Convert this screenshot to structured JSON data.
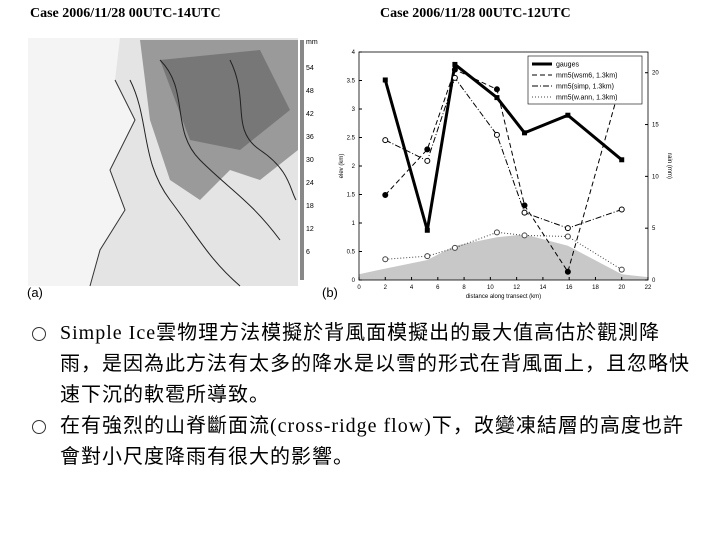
{
  "header": {
    "left": "Case 2006/11/28  00UTC-14UTC",
    "right": "Case 2006/11/28  00UTC-12UTC"
  },
  "figure_a": {
    "label": "(a)",
    "colorbar": {
      "unit": "mm",
      "labels": [
        54,
        48,
        42,
        36,
        30,
        24,
        18,
        12,
        6
      ]
    }
  },
  "figure_b": {
    "label": "(b)"
  },
  "chart_data": {
    "type": "line",
    "xlabel": "distance along transect (km)",
    "ylabel": "elev (km)",
    "y2label": "rain (mm)",
    "xlim": [
      0,
      22
    ],
    "xticks": [
      0,
      2,
      4,
      6,
      8,
      10,
      12,
      14,
      16,
      18,
      20,
      22
    ],
    "ylim": [
      0,
      4
    ],
    "yticks": [
      0,
      0.5,
      1,
      1.5,
      2,
      2.5,
      3,
      3.5,
      4
    ],
    "y2lim": [
      0,
      22
    ],
    "y2ticks": [
      0,
      5,
      10,
      15,
      20
    ],
    "x": [
      2,
      5.2,
      7.3,
      10.5,
      12.6,
      15.9,
      20
    ],
    "series": [
      {
        "name": "gauges",
        "color": "#000000",
        "dash": "solid",
        "width": 3,
        "marker": "square",
        "axis": "y2",
        "values": [
          19.3,
          4.8,
          20.8,
          17.6,
          14.2,
          15.9,
          11.6
        ]
      },
      {
        "name": "mm5(wsm6, 1.3km)",
        "color": "#000000",
        "dash": "dashed",
        "width": 1,
        "marker": "dot",
        "axis": "y2",
        "values": [
          8.2,
          12.6,
          20.3,
          18.4,
          7.2,
          0.8,
          19.3
        ]
      },
      {
        "name": "mm5(simp, 1.3km)",
        "color": "#000000",
        "dash": "dashdot",
        "width": 1,
        "marker": "circle",
        "axis": "y2",
        "values": [
          13.5,
          11.5,
          19.5,
          14,
          6.5,
          5,
          6.8
        ]
      },
      {
        "name": "mm5(w.ann, 1.3km)",
        "color": "#444444",
        "dash": "dotted",
        "width": 1,
        "marker": "circle",
        "axis": "y2",
        "values": [
          2,
          2.3,
          3.1,
          4.6,
          4.3,
          4.2,
          1
        ]
      }
    ],
    "terrain": {
      "color": "#c8c8c8",
      "axis": "y",
      "x": [
        0,
        2,
        5.2,
        7.3,
        10.5,
        12.6,
        15.9,
        20,
        22
      ],
      "values": [
        0.1,
        0.2,
        0.35,
        0.6,
        0.75,
        0.8,
        0.6,
        0.1,
        0.05
      ]
    },
    "legend": "upper right"
  },
  "bullets": [
    "Simple Ice雲物理方法模擬於背風面模擬出的最大值高估於觀測降雨，是因為此方法有太多的降水是以雪的形式在背風面上，且忽略快速下沉的軟雹所導致。",
    "在有強烈的山脊斷面流(cross-ridge flow)下，改變凍結層的高度也許會對小尺度降雨有很大的影響。"
  ]
}
